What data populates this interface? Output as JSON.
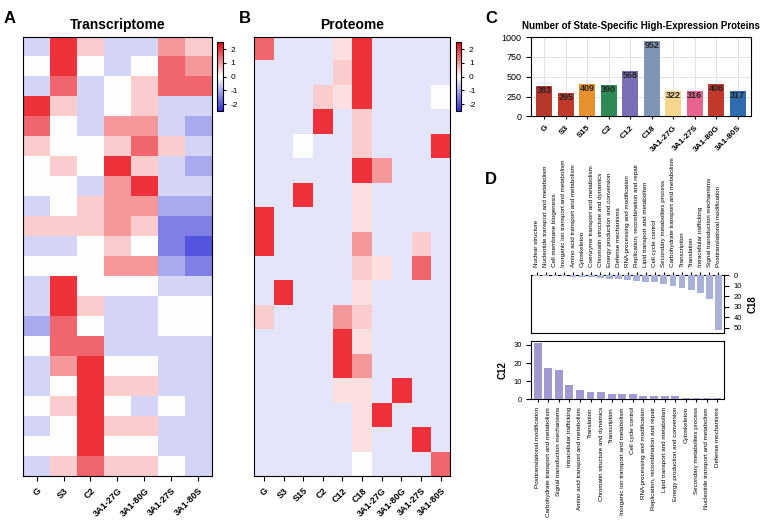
{
  "chart_data": [
    {
      "type": "heatmap",
      "panel": "A",
      "title": "Transcriptome",
      "categories": [
        "G",
        "S3",
        "C2",
        "3A1-27G",
        "3A1-80G",
        "3A1-27S",
        "3A1-80S"
      ],
      "cells": [
        [
          -0.5,
          2,
          0.5,
          -0.5,
          -0.5,
          1,
          0.5
        ],
        [
          0,
          2,
          0,
          -0.5,
          0,
          1.5,
          1
        ],
        [
          -0.5,
          1.5,
          -0.5,
          0,
          0.5,
          1.5,
          1.5
        ],
        [
          2,
          0.5,
          -0.5,
          0,
          0.5,
          -0.5,
          -0.5
        ],
        [
          1.5,
          0,
          -0.5,
          1,
          1,
          -0.5,
          -1
        ],
        [
          0.5,
          0,
          0,
          0.5,
          1.5,
          0.5,
          -0.5
        ],
        [
          0,
          0.5,
          0,
          2,
          0.5,
          -0.5,
          -1
        ],
        [
          0,
          0,
          -0.5,
          1,
          2,
          -0.5,
          -0.5
        ],
        [
          -0.5,
          0,
          0.5,
          1,
          1,
          -1,
          -1
        ],
        [
          0.5,
          0.5,
          0.5,
          1,
          0.5,
          -1.5,
          -1.5
        ],
        [
          -0.5,
          -0.5,
          0,
          0.5,
          0,
          -1.5,
          -2
        ],
        [
          0,
          0,
          0,
          1,
          1,
          -1,
          -1.5
        ],
        [
          -0.5,
          2,
          0,
          0,
          0,
          -0.5,
          -0.5
        ],
        [
          -0.5,
          2,
          0.5,
          -0.5,
          -0.5,
          0,
          0
        ],
        [
          -1,
          1.5,
          0,
          -0.5,
          -0.5,
          0,
          0
        ],
        [
          0,
          1.5,
          1.5,
          -0.5,
          -0.5,
          -0.5,
          -0.5
        ],
        [
          -0.5,
          1,
          2,
          0,
          0,
          -0.5,
          -0.5
        ],
        [
          -0.5,
          0,
          2,
          0.5,
          0.5,
          -0.5,
          -0.5
        ],
        [
          0,
          0.5,
          2,
          0,
          -0.5,
          0,
          -0.5
        ],
        [
          -0.5,
          0,
          2,
          0.5,
          0.5,
          -0.5,
          -0.5
        ],
        [
          0,
          0,
          2,
          0,
          0,
          -0.5,
          -0.5
        ],
        [
          -0.5,
          0.5,
          1.5,
          0.5,
          0.5,
          0,
          -0.5
        ]
      ],
      "colorbar": {
        "range": [
          -2.5,
          2.5
        ],
        "ticks": [
          2,
          1,
          0,
          -1,
          -2
        ]
      },
      "tick_labels": "x"
    },
    {
      "type": "heatmap",
      "panel": "B",
      "title": "Proteome",
      "categories": [
        "G",
        "S3",
        "S15",
        "C2",
        "C12",
        "C18",
        "3A1-27G",
        "3A1-80G",
        "3A1-27S",
        "3A1-80S"
      ],
      "cells": [
        [
          1.5,
          -0.3,
          -0.3,
          -0.3,
          0.3,
          2,
          -0.3,
          -0.3,
          -0.3,
          -0.3
        ],
        [
          -0.3,
          -0.3,
          -0.3,
          -0.3,
          0.5,
          2,
          -0.3,
          -0.3,
          -0.3,
          -0.3
        ],
        [
          -0.3,
          -0.3,
          -0.3,
          0.5,
          0.3,
          2,
          -0.3,
          -0.3,
          -0.3,
          0
        ],
        [
          -0.3,
          -0.3,
          -0.3,
          2,
          -0.3,
          0.5,
          -0.3,
          -0.3,
          -0.3,
          -0.3
        ],
        [
          -0.3,
          -0.3,
          0,
          -0.3,
          -0.3,
          0.5,
          -0.3,
          -0.3,
          -0.3,
          2
        ],
        [
          -0.3,
          -0.3,
          -0.3,
          -0.3,
          -0.3,
          2,
          1,
          -0.3,
          -0.3,
          -0.3
        ],
        [
          -0.3,
          -0.3,
          2,
          -0.3,
          -0.3,
          0.3,
          -0.3,
          -0.3,
          -0.3,
          -0.3
        ],
        [
          2,
          -0.3,
          -0.3,
          -0.3,
          -0.3,
          0.3,
          -0.3,
          -0.3,
          -0.3,
          -0.3
        ],
        [
          2,
          -0.3,
          -0.3,
          -0.3,
          -0.3,
          1,
          -0.3,
          -0.3,
          0.5,
          -0.3
        ],
        [
          -0.3,
          -0.3,
          -0.3,
          -0.3,
          -0.3,
          0.5,
          0.3,
          -0.3,
          1.5,
          -0.3
        ],
        [
          -0.3,
          2,
          -0.3,
          -0.3,
          -0.3,
          0.3,
          -0.3,
          -0.3,
          -0.3,
          -0.3
        ],
        [
          0.5,
          -0.3,
          -0.3,
          -0.3,
          1,
          0.5,
          -0.3,
          -0.3,
          -0.3,
          -0.3
        ],
        [
          -0.3,
          -0.3,
          -0.3,
          -0.3,
          2,
          0.3,
          -0.3,
          -0.3,
          -0.3,
          -0.3
        ],
        [
          -0.3,
          -0.3,
          -0.3,
          -0.3,
          2,
          1,
          -0.3,
          -0.3,
          -0.3,
          -0.3
        ],
        [
          -0.3,
          -0.3,
          -0.3,
          -0.3,
          0.3,
          0.3,
          -0.3,
          2,
          -0.3,
          -0.3
        ],
        [
          -0.3,
          -0.3,
          -0.3,
          -0.3,
          -0.3,
          0.3,
          2,
          -0.3,
          -0.3,
          -0.3
        ],
        [
          -0.3,
          -0.3,
          -0.3,
          -0.3,
          -0.3,
          0.3,
          -0.3,
          -0.3,
          2,
          -0.3
        ],
        [
          -0.3,
          -0.3,
          -0.3,
          -0.3,
          -0.3,
          0,
          -0.3,
          -0.3,
          -0.3,
          1.5
        ]
      ],
      "colorbar": {
        "range": [
          -2.5,
          2.5
        ],
        "ticks": [
          2,
          1,
          0,
          -1,
          -2
        ]
      },
      "tick_labels": "x"
    },
    {
      "type": "bar",
      "panel": "C",
      "title": "Number of State-Specific High-Expression Proteins",
      "categories": [
        "G",
        "S3",
        "S15",
        "C2",
        "C12",
        "C18",
        "3A1-27G",
        "3A1-27S",
        "3A1-80G",
        "3A1-80S"
      ],
      "values": [
        383,
        295,
        409,
        390,
        568,
        952,
        322,
        316,
        406,
        317
      ],
      "colors": [
        "#b5382c",
        "#c0392b",
        "#e8902e",
        "#2e8b57",
        "#7a6fb5",
        "#7f95b8",
        "#f6d58e",
        "#e8628f",
        "#c0392b",
        "#2f6db0"
      ],
      "ylim": [
        0,
        1000
      ],
      "yticks": [
        0,
        250,
        500,
        750,
        1000
      ],
      "grid": true,
      "data_labels": true
    },
    {
      "type": "bar",
      "panel": "D",
      "ylabel": "C18",
      "categories": [
        "Nuclear structure",
        "Nucleotide transport and metabolism",
        "Cell membrane biogenesis",
        "Inorganic ion transport and metabolism",
        "Amino acid transport and metabolism",
        "Cytoskeleton",
        "Coenzyme transport and metabolism",
        "Chromatin structure and dynamics",
        "Energy production and conversion",
        "Defense mechanisms",
        "RNA processing and modification",
        "Replication, recombination and repair",
        "Lipid transport and metabolism",
        "Cell cycle control",
        "Secondary metabolites process",
        "Carbohydrate transport and metabolism",
        "Transcription",
        "Translation",
        "Intracellular trafficking",
        "Signal transduction mechanisms",
        "Posttranslational modification"
      ],
      "values": [
        1,
        1,
        1,
        1,
        2,
        2,
        2,
        3,
        4,
        4,
        5,
        6,
        7,
        7,
        8,
        10,
        12,
        14,
        17,
        23,
        52
      ],
      "color": "#a9b1d6",
      "ylim": [
        0,
        55
      ],
      "yticks": [
        0,
        10,
        20,
        30,
        40,
        50
      ]
    },
    {
      "type": "bar",
      "ylabel": "C12",
      "categories": [
        "Posttranslational modification",
        "Carbohydrate transport and metabolism",
        "Signal transduction mechanisms",
        "Intracellular trafficking",
        "Amino acid transport and metabolism",
        "Translation",
        "Chromatin structure and dynamics",
        "Transcription",
        "Inorganic ion transport and metabolism",
        "Cell cycle control",
        "RNA processing and modification",
        "Replication, recombination and repair",
        "Lipid transport and metabolism",
        "Energy production and conversion",
        "Cytoskeleton",
        "Secondary metabolites process",
        "Nucleotide transport and metabolism",
        "Defense mechanisms"
      ],
      "values": [
        31,
        17,
        16,
        8,
        5,
        4,
        4,
        3,
        3,
        3,
        2,
        2,
        2,
        2,
        1,
        1,
        1,
        1
      ],
      "color": "#a09ad0",
      "ylim": [
        0,
        32
      ],
      "yticks": [
        0,
        10,
        20,
        30
      ]
    }
  ]
}
